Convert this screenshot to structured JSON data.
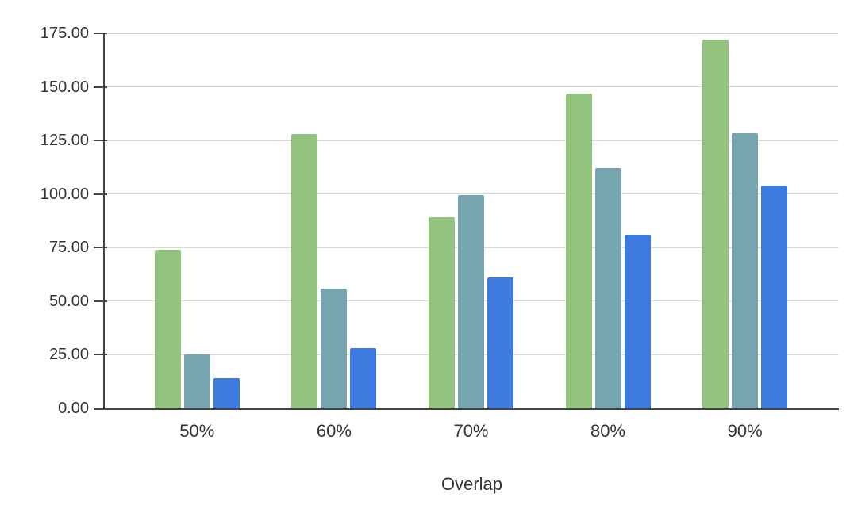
{
  "chart_data": {
    "type": "bar",
    "title": "",
    "xlabel": "Overlap",
    "ylabel": "",
    "categories": [
      "50%",
      "60%",
      "70%",
      "80%",
      "90%"
    ],
    "series": [
      {
        "color": "#93c47d",
        "values": [
          74,
          128,
          89,
          147,
          172
        ]
      },
      {
        "color": "#76a5af",
        "values": [
          25,
          56,
          99.5,
          112,
          128.5
        ]
      },
      {
        "color": "#3d7ae0",
        "values": [
          14,
          28,
          61,
          81,
          104
        ]
      }
    ],
    "ylim": [
      0,
      175
    ],
    "ytick_step": 25,
    "ytick_labels": [
      "0.00",
      "25.00",
      "50.00",
      "75.00",
      "100.00",
      "125.00",
      "150.00",
      "175.00"
    ],
    "grid": true,
    "legend": "none",
    "colors": {
      "background": "#ffffff",
      "gridline": "#d9d9d9",
      "axis": "#424242",
      "tick_label": "#333333",
      "axis_title": "#333333"
    }
  }
}
